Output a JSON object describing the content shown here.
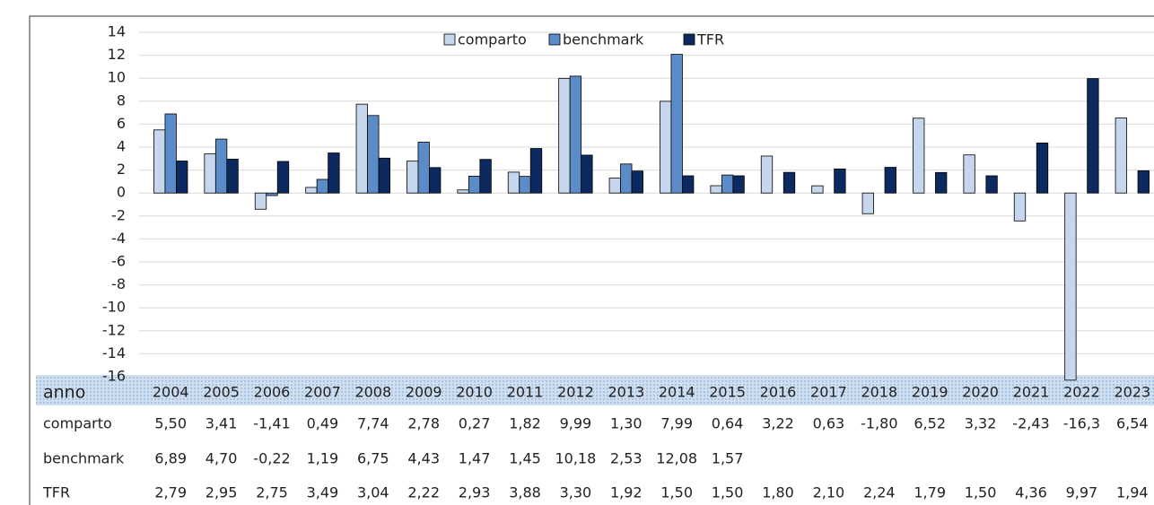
{
  "chart_data": {
    "type": "bar",
    "categories": [
      "2004",
      "2005",
      "2006",
      "2007",
      "2008",
      "2009",
      "2010",
      "2011",
      "2012",
      "2013",
      "2014",
      "2015",
      "2016",
      "2017",
      "2018",
      "2019",
      "2020",
      "2021",
      "2022",
      "2023"
    ],
    "x_label": "anno",
    "series": [
      {
        "name": "comparto",
        "color": "#c6d6ec",
        "values": [
          5.5,
          3.41,
          -1.41,
          0.49,
          7.74,
          2.78,
          0.27,
          1.82,
          9.99,
          1.3,
          7.99,
          0.64,
          3.22,
          0.63,
          -1.8,
          6.52,
          3.32,
          -2.43,
          -16.3,
          6.54
        ],
        "value_labels": [
          "5,50",
          "3,41",
          "-1,41",
          "0,49",
          "7,74",
          "2,78",
          "0,27",
          "1,82",
          "9,99",
          "1,30",
          "7,99",
          "0,64",
          "3,22",
          "0,63",
          "-1,80",
          "6,52",
          "3,32",
          "-2,43",
          "-16,3",
          "6,54"
        ]
      },
      {
        "name": "benchmark",
        "color": "#5b8cc8",
        "values": [
          6.89,
          4.7,
          -0.22,
          1.19,
          6.75,
          4.43,
          1.47,
          1.45,
          10.18,
          2.53,
          12.08,
          1.57,
          null,
          null,
          null,
          null,
          null,
          null,
          null,
          null
        ],
        "value_labels": [
          "6,89",
          "4,70",
          "-0,22",
          "1,19",
          "6,75",
          "4,43",
          "1,47",
          "1,45",
          "10,18",
          "2,53",
          "12,08",
          "1,57",
          null,
          null,
          null,
          null,
          null,
          null,
          null,
          null
        ]
      },
      {
        "name": "TFR",
        "color": "#0c2a5f",
        "values": [
          2.79,
          2.95,
          2.75,
          3.49,
          3.04,
          2.22,
          2.93,
          3.88,
          3.3,
          1.92,
          1.5,
          1.5,
          1.8,
          2.1,
          2.24,
          1.79,
          1.5,
          4.36,
          9.97,
          1.94
        ],
        "value_labels": [
          "2,79",
          "2,95",
          "2,75",
          "3,49",
          "3,04",
          "2,22",
          "2,93",
          "3,88",
          "3,30",
          "1,92",
          "1,50",
          "1,50",
          "1,80",
          "2,10",
          "2,24",
          "1,79",
          "1,50",
          "4,36",
          "9,97",
          "1,94"
        ]
      }
    ],
    "ylim": [
      -16,
      14
    ],
    "yticks": [
      -16,
      -14,
      -12,
      -10,
      -8,
      -6,
      -4,
      -2,
      0,
      2,
      4,
      6,
      8,
      10,
      12,
      14
    ],
    "grid": true,
    "legend": "top"
  }
}
